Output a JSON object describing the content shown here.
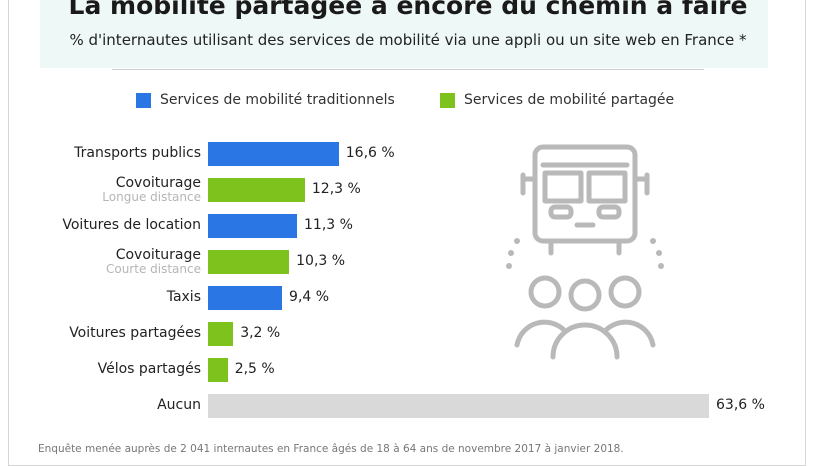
{
  "title": "La mobilité partagée a encore du chemin à faire",
  "subtitle": "% d'internautes utilisant des services de mobilité via une appli ou un site web en France *",
  "footnote": "Enquête menée auprès de 2 041 internautes en France âgés de 18 à 64 ans de novembre 2017 à janvier 2018.",
  "illustration": {
    "icon": "bus-and-people-icon",
    "color": "#b9b9b9"
  },
  "chart_data": {
    "type": "bar",
    "orientation": "horizontal",
    "legend": [
      {
        "name": "Services de mobilité traditionnels",
        "color": "#2b76e5"
      },
      {
        "name": "Services de mobilité partagée",
        "color": "#7ec21e"
      }
    ],
    "categories": [
      {
        "label": "Transports publics",
        "sublabel": "",
        "value": 16.6,
        "value_label": "16,6 %",
        "group": "Services de mobilité traditionnels",
        "color": "#2b76e5"
      },
      {
        "label": "Covoiturage",
        "sublabel": "Longue distance",
        "value": 12.3,
        "value_label": "12,3 %",
        "group": "Services de mobilité partagée",
        "color": "#7ec21e"
      },
      {
        "label": "Voitures de location",
        "sublabel": "",
        "value": 11.3,
        "value_label": "11,3 %",
        "group": "Services de mobilité traditionnels",
        "color": "#2b76e5"
      },
      {
        "label": "Covoiturage",
        "sublabel": "Courte distance",
        "value": 10.3,
        "value_label": "10,3 %",
        "group": "Services de mobilité partagée",
        "color": "#7ec21e"
      },
      {
        "label": "Taxis",
        "sublabel": "",
        "value": 9.4,
        "value_label": "9,4 %",
        "group": "Services de mobilité traditionnels",
        "color": "#2b76e5"
      },
      {
        "label": "Voitures partagées",
        "sublabel": "",
        "value": 3.2,
        "value_label": "3,2 %",
        "group": "Services de mobilité partagée",
        "color": "#7ec21e"
      },
      {
        "label": "Vélos partagés",
        "sublabel": "",
        "value": 2.5,
        "value_label": "2,5 %",
        "group": "Services de mobilité partagée",
        "color": "#7ec21e"
      },
      {
        "label": "Aucun",
        "sublabel": "",
        "value": 63.6,
        "value_label": "63,6 %",
        "group": "",
        "color": "#d9d9d9"
      }
    ],
    "xlim": [
      0,
      63.6
    ],
    "grid": false,
    "legend_position": "top"
  }
}
